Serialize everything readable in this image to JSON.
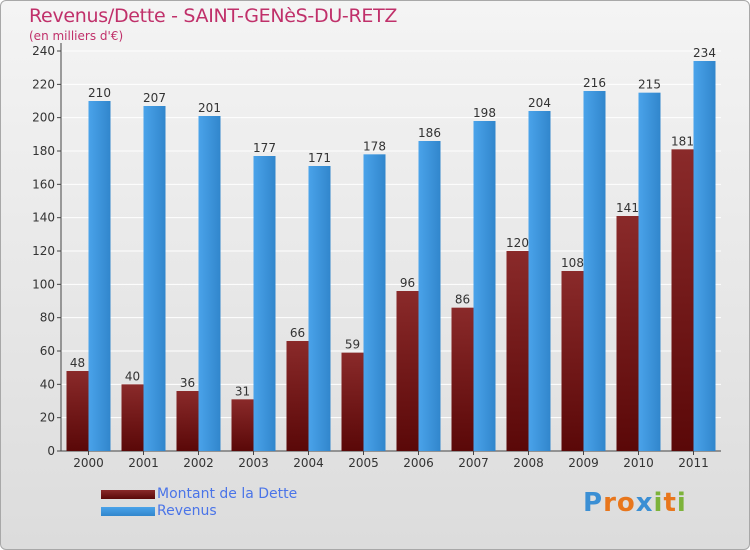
{
  "header": {
    "title": "Revenus/Dette - SAINT-GENèS-DU-RETZ",
    "subtitle": "(en milliers d'€)"
  },
  "brand": {
    "letters": [
      "P",
      "r",
      "o",
      "x",
      "i",
      "t",
      "i"
    ],
    "colors": [
      "#3b8fd4",
      "#e8761c",
      "#e8761c",
      "#3b8fd4",
      "#7db33a",
      "#e8761c",
      "#7db33a"
    ]
  },
  "chart_data": {
    "type": "bar",
    "title": "Revenus/Dette - SAINT-GENèS-DU-RETZ",
    "subtitle": "(en milliers d'€)",
    "categories": [
      "2000",
      "2001",
      "2002",
      "2003",
      "2004",
      "2005",
      "2006",
      "2007",
      "2008",
      "2009",
      "2010",
      "2011"
    ],
    "series": [
      {
        "name": "Montant de la Dette",
        "color": "#7a1a1a",
        "values": [
          48,
          40,
          36,
          31,
          66,
          59,
          96,
          86,
          120,
          108,
          141,
          181
        ]
      },
      {
        "name": "Revenus",
        "color": "#3a95dd",
        "values": [
          210,
          207,
          201,
          177,
          171,
          178,
          186,
          198,
          204,
          216,
          215,
          234
        ]
      }
    ],
    "ylim": [
      0,
      240
    ],
    "yticks": [
      "0",
      "20",
      "40",
      "60",
      "80",
      "100",
      "120",
      "140",
      "160",
      "180",
      "200",
      "220",
      "240"
    ],
    "grid": true,
    "legend_position": "bottom-left"
  }
}
